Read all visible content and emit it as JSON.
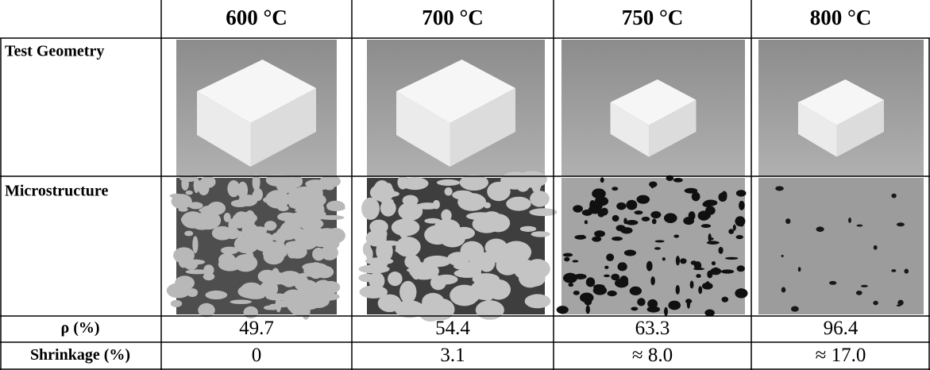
{
  "table": {
    "columns": [
      "600 °C",
      "700 °C",
      "750 °C",
      "800 °C"
    ],
    "image_rows": [
      "Test Geometry",
      "Microstructure"
    ],
    "rows": [
      [
        "ρ (%)",
        49.7,
        54.4,
        63.3,
        96.4
      ],
      [
        "Shrinkage (%)",
        0,
        3.1,
        "≈ 8.0",
        "≈ 17.0"
      ]
    ]
  }
}
